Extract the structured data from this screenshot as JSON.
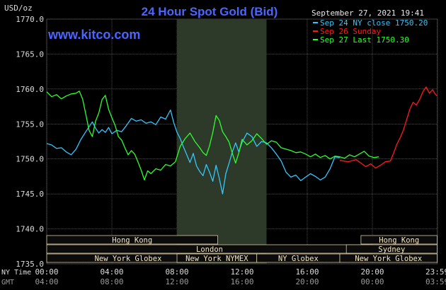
{
  "colors": {
    "background": "#000000",
    "grid": "#7a7a7a",
    "title": "#4a66ff",
    "site": "#4a66ff",
    "axis_text": "#dcdcdc",
    "session_shade": "#2d3a2a",
    "session_box_fill": "#0b0b0b",
    "session_box_stroke": "#d9c9a0",
    "session_text": "#f4e7c2",
    "series_blue": "#33c6ff",
    "series_red": "#ff1a1a",
    "series_green": "#2dff2d"
  },
  "chart_data": {
    "type": "line",
    "title": "24 Hour Spot Gold (Bid)",
    "site": "www.kitco.com",
    "timestamp": "September 27, 2021 19:41",
    "y_unit_label": "USD/oz",
    "ylim": [
      1735.0,
      1770.0
    ],
    "yticks": [
      1735.0,
      1740.0,
      1745.0,
      1750.0,
      1755.0,
      1760.0,
      1765.0,
      1770.0
    ],
    "ytick_labels": [
      "1735.0",
      "1740.0",
      "1745.0",
      "1750.0",
      "1755.0",
      "1760.0",
      "1765.0",
      "1770.0"
    ],
    "xlim": [
      0,
      24
    ],
    "xticks": [
      0,
      4,
      8,
      12,
      16,
      20,
      23.98
    ],
    "x_tick_labels_ny": [
      "00:00",
      "04:00",
      "08:00",
      "12:00",
      "16:00",
      "20:00",
      "23:59"
    ],
    "x_tick_labels_gmt": [
      "04:00",
      "08:00",
      "12:00",
      "16:00",
      "20:00",
      "00:00",
      "03:59"
    ],
    "x_row_labels": {
      "ny": "NY Time",
      "gmt": "GMT"
    },
    "grid": true,
    "legend_position": "top-right",
    "shaded_region": [
      8.0,
      13.5
    ],
    "series": [
      {
        "name": "Sep 24 NY close 1750.20",
        "color": "#33c6ff",
        "points": [
          [
            0.0,
            1752.2
          ],
          [
            0.3,
            1752.0
          ],
          [
            0.6,
            1751.5
          ],
          [
            0.9,
            1751.6
          ],
          [
            1.2,
            1751.0
          ],
          [
            1.5,
            1750.6
          ],
          [
            1.8,
            1751.4
          ],
          [
            2.1,
            1752.8
          ],
          [
            2.4,
            1753.9
          ],
          [
            2.6,
            1754.6
          ],
          [
            2.8,
            1755.3
          ],
          [
            3.0,
            1754.4
          ],
          [
            3.2,
            1753.7
          ],
          [
            3.4,
            1754.2
          ],
          [
            3.6,
            1753.8
          ],
          [
            3.8,
            1754.5
          ],
          [
            4.0,
            1753.6
          ],
          [
            4.3,
            1754.1
          ],
          [
            4.6,
            1753.9
          ],
          [
            4.9,
            1754.8
          ],
          [
            5.2,
            1755.8
          ],
          [
            5.5,
            1755.4
          ],
          [
            5.8,
            1755.6
          ],
          [
            6.1,
            1755.1
          ],
          [
            6.4,
            1755.3
          ],
          [
            6.7,
            1754.9
          ],
          [
            7.0,
            1756.0
          ],
          [
            7.3,
            1755.7
          ],
          [
            7.6,
            1757.0
          ],
          [
            7.8,
            1755.2
          ],
          [
            8.0,
            1753.8
          ],
          [
            8.2,
            1752.9
          ],
          [
            8.4,
            1751.7
          ],
          [
            8.6,
            1750.6
          ],
          [
            8.8,
            1749.5
          ],
          [
            9.0,
            1750.8
          ],
          [
            9.2,
            1749.0
          ],
          [
            9.4,
            1748.2
          ],
          [
            9.6,
            1747.6
          ],
          [
            9.8,
            1749.2
          ],
          [
            10.0,
            1748.1
          ],
          [
            10.2,
            1746.8
          ],
          [
            10.4,
            1749.1
          ],
          [
            10.6,
            1747.2
          ],
          [
            10.8,
            1745.0
          ],
          [
            11.0,
            1747.9
          ],
          [
            11.2,
            1749.4
          ],
          [
            11.4,
            1751.0
          ],
          [
            11.6,
            1752.3
          ],
          [
            11.8,
            1751.0
          ],
          [
            12.0,
            1752.4
          ],
          [
            12.3,
            1753.7
          ],
          [
            12.6,
            1753.2
          ],
          [
            12.9,
            1751.8
          ],
          [
            13.2,
            1752.5
          ],
          [
            13.5,
            1752.3
          ],
          [
            13.8,
            1751.6
          ],
          [
            14.1,
            1750.7
          ],
          [
            14.4,
            1749.7
          ],
          [
            14.7,
            1748.1
          ],
          [
            15.0,
            1747.4
          ],
          [
            15.3,
            1747.7
          ],
          [
            15.6,
            1746.9
          ],
          [
            15.9,
            1747.4
          ],
          [
            16.2,
            1747.9
          ],
          [
            16.5,
            1747.5
          ],
          [
            16.8,
            1747.0
          ],
          [
            17.1,
            1747.4
          ],
          [
            17.4,
            1748.6
          ],
          [
            17.7,
            1750.3
          ],
          [
            18.0,
            1750.2
          ]
        ]
      },
      {
        "name": "Sep 26 Sunday",
        "color": "#ff1a1a",
        "points": [
          [
            18.0,
            1749.8
          ],
          [
            18.5,
            1749.6
          ],
          [
            19.0,
            1749.9
          ],
          [
            19.3,
            1749.4
          ],
          [
            19.6,
            1748.9
          ],
          [
            19.9,
            1749.3
          ],
          [
            20.2,
            1748.7
          ],
          [
            20.5,
            1749.1
          ],
          [
            20.8,
            1749.6
          ],
          [
            21.1,
            1749.7
          ],
          [
            21.3,
            1750.8
          ],
          [
            21.5,
            1752.1
          ],
          [
            21.7,
            1753.0
          ],
          [
            21.9,
            1754.1
          ],
          [
            22.1,
            1755.6
          ],
          [
            22.3,
            1757.1
          ],
          [
            22.5,
            1758.1
          ],
          [
            22.7,
            1757.7
          ],
          [
            22.9,
            1758.5
          ],
          [
            23.1,
            1759.6
          ],
          [
            23.3,
            1760.3
          ],
          [
            23.5,
            1759.4
          ],
          [
            23.7,
            1759.9
          ],
          [
            23.85,
            1759.3
          ],
          [
            23.98,
            1759.0
          ]
        ]
      },
      {
        "name": "Sep 27 Last 1750.30",
        "color": "#2dff2d",
        "points": [
          [
            0.0,
            1759.6
          ],
          [
            0.3,
            1758.9
          ],
          [
            0.6,
            1759.2
          ],
          [
            0.9,
            1758.6
          ],
          [
            1.2,
            1759.0
          ],
          [
            1.5,
            1759.3
          ],
          [
            1.8,
            1759.4
          ],
          [
            2.0,
            1759.7
          ],
          [
            2.2,
            1758.6
          ],
          [
            2.4,
            1756.4
          ],
          [
            2.6,
            1754.1
          ],
          [
            2.8,
            1753.2
          ],
          [
            3.0,
            1755.4
          ],
          [
            3.2,
            1756.6
          ],
          [
            3.4,
            1758.5
          ],
          [
            3.6,
            1759.1
          ],
          [
            3.8,
            1757.1
          ],
          [
            4.0,
            1755.9
          ],
          [
            4.2,
            1754.8
          ],
          [
            4.4,
            1753.2
          ],
          [
            4.6,
            1752.7
          ],
          [
            4.8,
            1751.6
          ],
          [
            5.0,
            1750.6
          ],
          [
            5.2,
            1751.2
          ],
          [
            5.4,
            1750.7
          ],
          [
            5.6,
            1749.6
          ],
          [
            5.8,
            1748.4
          ],
          [
            6.0,
            1747.0
          ],
          [
            6.2,
            1748.3
          ],
          [
            6.4,
            1747.9
          ],
          [
            6.7,
            1748.6
          ],
          [
            7.0,
            1748.4
          ],
          [
            7.3,
            1749.2
          ],
          [
            7.6,
            1749.0
          ],
          [
            7.9,
            1749.6
          ],
          [
            8.2,
            1751.8
          ],
          [
            8.5,
            1752.9
          ],
          [
            8.8,
            1753.7
          ],
          [
            9.1,
            1752.5
          ],
          [
            9.4,
            1751.6
          ],
          [
            9.6,
            1750.9
          ],
          [
            9.8,
            1750.5
          ],
          [
            10.0,
            1751.9
          ],
          [
            10.2,
            1753.8
          ],
          [
            10.4,
            1756.2
          ],
          [
            10.6,
            1755.5
          ],
          [
            10.8,
            1753.9
          ],
          [
            11.0,
            1753.2
          ],
          [
            11.2,
            1752.4
          ],
          [
            11.4,
            1750.8
          ],
          [
            11.6,
            1749.4
          ],
          [
            11.8,
            1750.9
          ],
          [
            12.0,
            1752.8
          ],
          [
            12.3,
            1752.0
          ],
          [
            12.6,
            1752.6
          ],
          [
            12.9,
            1753.6
          ],
          [
            13.2,
            1752.9
          ],
          [
            13.5,
            1752.1
          ],
          [
            13.8,
            1752.6
          ],
          [
            14.1,
            1752.4
          ],
          [
            14.4,
            1751.6
          ],
          [
            14.7,
            1751.4
          ],
          [
            15.0,
            1751.2
          ],
          [
            15.3,
            1750.9
          ],
          [
            15.6,
            1751.0
          ],
          [
            15.9,
            1750.7
          ],
          [
            16.2,
            1750.3
          ],
          [
            16.5,
            1750.7
          ],
          [
            16.8,
            1750.2
          ],
          [
            17.1,
            1750.5
          ],
          [
            17.4,
            1750.0
          ],
          [
            17.7,
            1750.4
          ],
          [
            18.0,
            1750.3
          ],
          [
            18.3,
            1750.1
          ],
          [
            18.6,
            1750.6
          ],
          [
            18.9,
            1750.3
          ],
          [
            19.2,
            1750.7
          ],
          [
            19.5,
            1751.1
          ],
          [
            19.8,
            1750.4
          ],
          [
            20.1,
            1750.2
          ],
          [
            20.4,
            1750.3
          ]
        ]
      }
    ],
    "session_bars": [
      {
        "label": "Hong Kong",
        "start": 0.0,
        "end": 10.5,
        "row": 0
      },
      {
        "label": "London",
        "start": 0.0,
        "end": 20.0,
        "row": 1
      },
      {
        "label": "New York Globex",
        "start": 0.0,
        "end": 10.0,
        "row": 2
      },
      {
        "label": "New York NYMEX",
        "start": 8.0,
        "end": 12.9,
        "row": 2
      },
      {
        "label": "NY Globex",
        "start": 12.9,
        "end": 18.0,
        "row": 2
      },
      {
        "label": "Hong Kong",
        "start": 19.3,
        "end": 23.98,
        "row": 0
      },
      {
        "label": "Sydney",
        "start": 18.4,
        "end": 23.98,
        "row": 1
      },
      {
        "label": "New York Globex",
        "start": 18.0,
        "end": 23.98,
        "row": 2
      }
    ]
  }
}
